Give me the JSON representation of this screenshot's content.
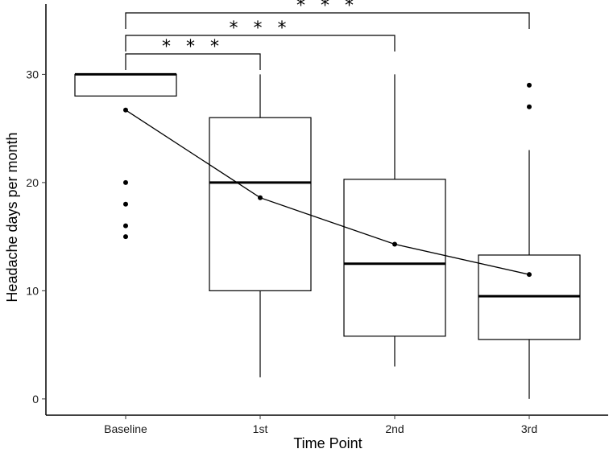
{
  "chart_data": {
    "type": "box",
    "xlabel": "Time Point",
    "ylabel": "Headache days per month",
    "categories": [
      "Baseline",
      "1st",
      "2nd",
      "3rd"
    ],
    "ylim": [
      -1.5,
      36.5
    ],
    "yticks": [
      0,
      10,
      20,
      30
    ],
    "grid": false,
    "boxes": [
      {
        "category": "Baseline",
        "whisker_low": 28,
        "q1": 28,
        "median": 30,
        "q3": 30,
        "whisker_high": 30,
        "outliers": [
          20,
          18,
          16,
          15
        ]
      },
      {
        "category": "1st",
        "whisker_low": 2,
        "q1": 10,
        "median": 20,
        "q3": 26,
        "whisker_high": 30,
        "outliers": []
      },
      {
        "category": "2nd",
        "whisker_low": 3,
        "q1": 5.8,
        "median": 12.5,
        "q3": 20.3,
        "whisker_high": 30,
        "outliers": []
      },
      {
        "category": "3rd",
        "whisker_low": 0,
        "q1": 5.5,
        "median": 9.5,
        "q3": 13.3,
        "whisker_high": 23,
        "outliers": [
          29,
          27
        ]
      }
    ],
    "mean_line": {
      "values": [
        26.7,
        18.6,
        14.3,
        11.5
      ]
    },
    "significance": [
      {
        "from": "Baseline",
        "to": "1st",
        "label": "* * *"
      },
      {
        "from": "Baseline",
        "to": "2nd",
        "label": "* * *"
      },
      {
        "from": "Baseline",
        "to": "3rd",
        "label": "* * *"
      }
    ]
  }
}
